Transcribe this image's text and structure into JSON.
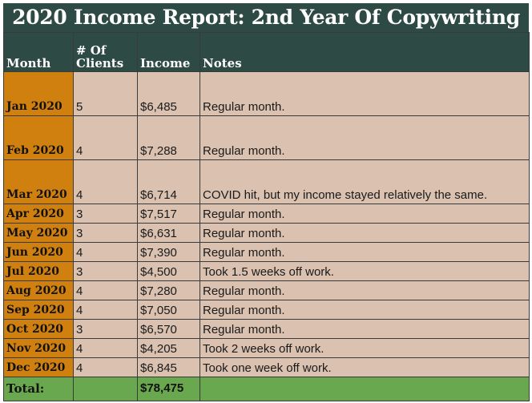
{
  "title": "2020 Income Report: 2nd Year Of Copywriting",
  "columns": [
    "Month",
    "# Of Clients",
    "Income",
    "Notes"
  ],
  "rows": [
    {
      "month": "Jan 2020",
      "clients": "5",
      "income": "$6,485",
      "notes": "Regular month."
    },
    {
      "month": "Feb 2020",
      "clients": "4",
      "income": "$7,288",
      "notes": "Regular month."
    },
    {
      "month": "Mar 2020",
      "clients": "4",
      "income": "$6,714",
      "notes": "COVID hit, but my income stayed relatively the same."
    },
    {
      "month": "Apr 2020",
      "clients": "3",
      "income": "$7,517",
      "notes": "Regular month."
    },
    {
      "month": "May 2020",
      "clients": "3",
      "income": "$6,631",
      "notes": "Regular month."
    },
    {
      "month": "Jun 2020",
      "clients": "4",
      "income": "$7,390",
      "notes": "Regular month."
    },
    {
      "month": "Jul 2020",
      "clients": "3",
      "income": "$4,500",
      "notes": "Took 1.5 weeks off work."
    },
    {
      "month": "Aug 2020",
      "clients": "4",
      "income": "$7,280",
      "notes": "Regular month."
    },
    {
      "month": "Sep 2020",
      "clients": "4",
      "income": "$7,050",
      "notes": "Regular month."
    },
    {
      "month": "Oct 2020",
      "clients": "3",
      "income": "$6,570",
      "notes": "Regular month."
    },
    {
      "month": "Nov 2020",
      "clients": "4",
      "income": "$4,205",
      "notes": "Took 2 weeks off work."
    },
    {
      "month": "Dec 2020",
      "clients": "4",
      "income": "$6,845",
      "notes": "Took one week off work."
    }
  ],
  "total": {
    "label": "Total:",
    "income": "$78,475"
  },
  "colors": {
    "header_bg": "#2e4a44",
    "month_bg": "#cf800f",
    "cell_bg": "#dbc1b0",
    "total_bg": "#6aa84f"
  }
}
